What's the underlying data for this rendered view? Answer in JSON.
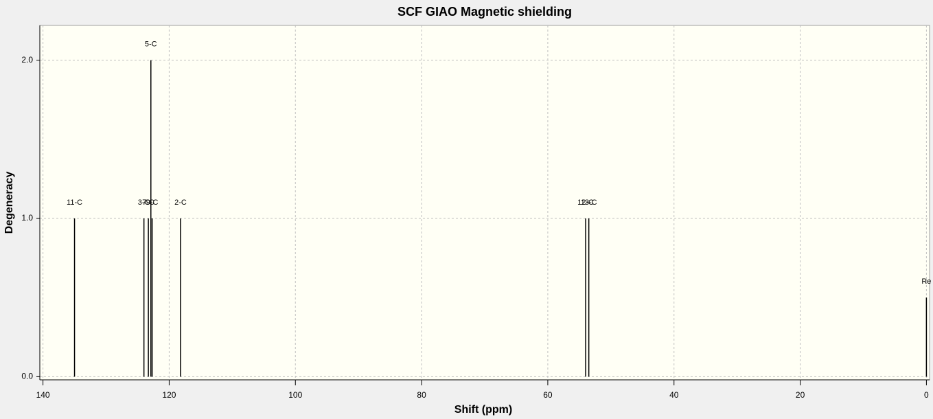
{
  "chart_data": {
    "type": "stick",
    "title": "SCF GIAO Magnetic shielding",
    "x_label": "Shift (ppm)",
    "y_label": "Degeneracy",
    "x": [
      135.0,
      124.0,
      123.3,
      122.9,
      122.7,
      118.2,
      54.0,
      53.5,
      0.0
    ],
    "values": [
      1,
      1,
      1,
      2,
      1,
      1,
      1,
      1,
      0.5
    ],
    "labels": [
      "11-C",
      "3-C",
      "7-C",
      "5-C",
      "9-C",
      "2-C",
      "12-C",
      "13-C",
      "Re"
    ],
    "color": "#000000",
    "xlim": [
      140.5,
      -0.5
    ],
    "ylim": [
      -0.02,
      2.22
    ],
    "xticks": [
      140,
      120,
      100,
      80,
      60,
      40,
      20,
      0
    ],
    "yticks": [
      {
        "value": 0,
        "label": "0.0"
      },
      {
        "value": 1,
        "label": "1.0"
      },
      {
        "value": 2,
        "label": "2.0"
      }
    ],
    "grid": true
  }
}
